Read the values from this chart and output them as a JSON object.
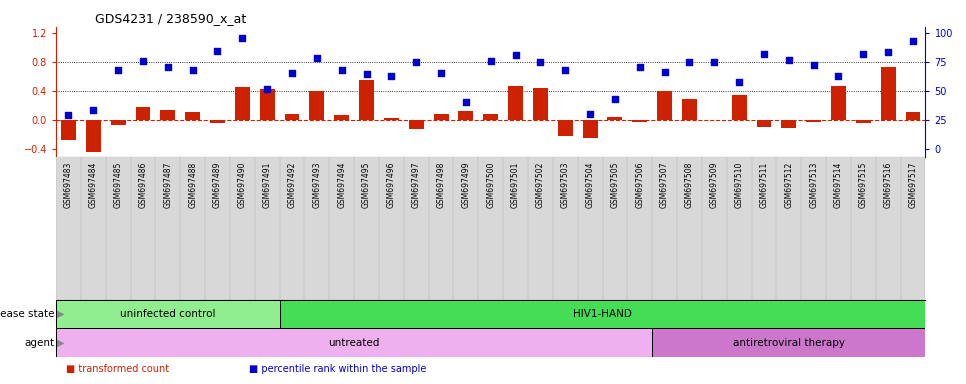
{
  "title": "GDS4231 / 238590_x_at",
  "samples": [
    "GSM697483",
    "GSM697484",
    "GSM697485",
    "GSM697486",
    "GSM697487",
    "GSM697488",
    "GSM697489",
    "GSM697490",
    "GSM697491",
    "GSM697492",
    "GSM697493",
    "GSM697494",
    "GSM697495",
    "GSM697496",
    "GSM697497",
    "GSM697498",
    "GSM697499",
    "GSM697500",
    "GSM697501",
    "GSM697502",
    "GSM697503",
    "GSM697504",
    "GSM697505",
    "GSM697506",
    "GSM697507",
    "GSM697508",
    "GSM697509",
    "GSM697510",
    "GSM697511",
    "GSM697512",
    "GSM697513",
    "GSM697514",
    "GSM697515",
    "GSM697516",
    "GSM697517"
  ],
  "bar_values": [
    -0.28,
    -0.45,
    -0.07,
    0.18,
    0.14,
    0.11,
    -0.04,
    0.45,
    0.42,
    0.08,
    0.4,
    0.07,
    0.55,
    0.02,
    -0.13,
    0.08,
    0.12,
    0.08,
    0.46,
    0.44,
    -0.22,
    -0.25,
    0.04,
    -0.03,
    0.4,
    0.28,
    0.0,
    0.34,
    -0.1,
    -0.12,
    -0.03,
    0.47,
    -0.05,
    0.73,
    0.1
  ],
  "dot_values": [
    0.06,
    0.14,
    0.69,
    0.81,
    0.73,
    0.68,
    0.95,
    1.12,
    0.42,
    0.64,
    0.85,
    0.68,
    0.63,
    0.6,
    0.79,
    0.65,
    0.24,
    0.81,
    0.89,
    0.79,
    0.68,
    0.08,
    0.28,
    0.73,
    0.66,
    0.79,
    0.8,
    0.52,
    0.91,
    0.82,
    0.75,
    0.6,
    0.91,
    0.93,
    1.08
  ],
  "ylim": [
    -0.52,
    1.28
  ],
  "yticks_left": [
    -0.4,
    0.0,
    0.4,
    0.8,
    1.2
  ],
  "yticks_right_pos": [
    -0.4,
    0.0,
    0.4,
    0.8,
    1.2
  ],
  "yticks_right_labels": [
    "0",
    "25",
    "50",
    "75",
    "100"
  ],
  "hline_dotted": [
    0.4,
    0.8
  ],
  "zero_line_color": "#CC2200",
  "disease_state_groups": [
    {
      "label": "uninfected control",
      "start": 0,
      "end": 9,
      "color": "#90EE90"
    },
    {
      "label": "HIV1-HAND",
      "start": 9,
      "end": 35,
      "color": "#44DD55"
    }
  ],
  "agent_groups": [
    {
      "label": "untreated",
      "start": 0,
      "end": 24,
      "color": "#EEB0EE"
    },
    {
      "label": "antiretroviral therapy",
      "start": 24,
      "end": 35,
      "color": "#CC77CC"
    }
  ],
  "bar_color": "#CC2200",
  "dot_color": "#0000CC",
  "left_label_color": "#CC2200",
  "right_label_color": "#0000CC",
  "legend_items": [
    {
      "color": "#CC2200",
      "label": "transformed count"
    },
    {
      "color": "#0000CC",
      "label": "percentile rank within the sample"
    }
  ],
  "row_labels": [
    "disease state",
    "agent"
  ],
  "xtick_bg_color": "#D8D8D8"
}
